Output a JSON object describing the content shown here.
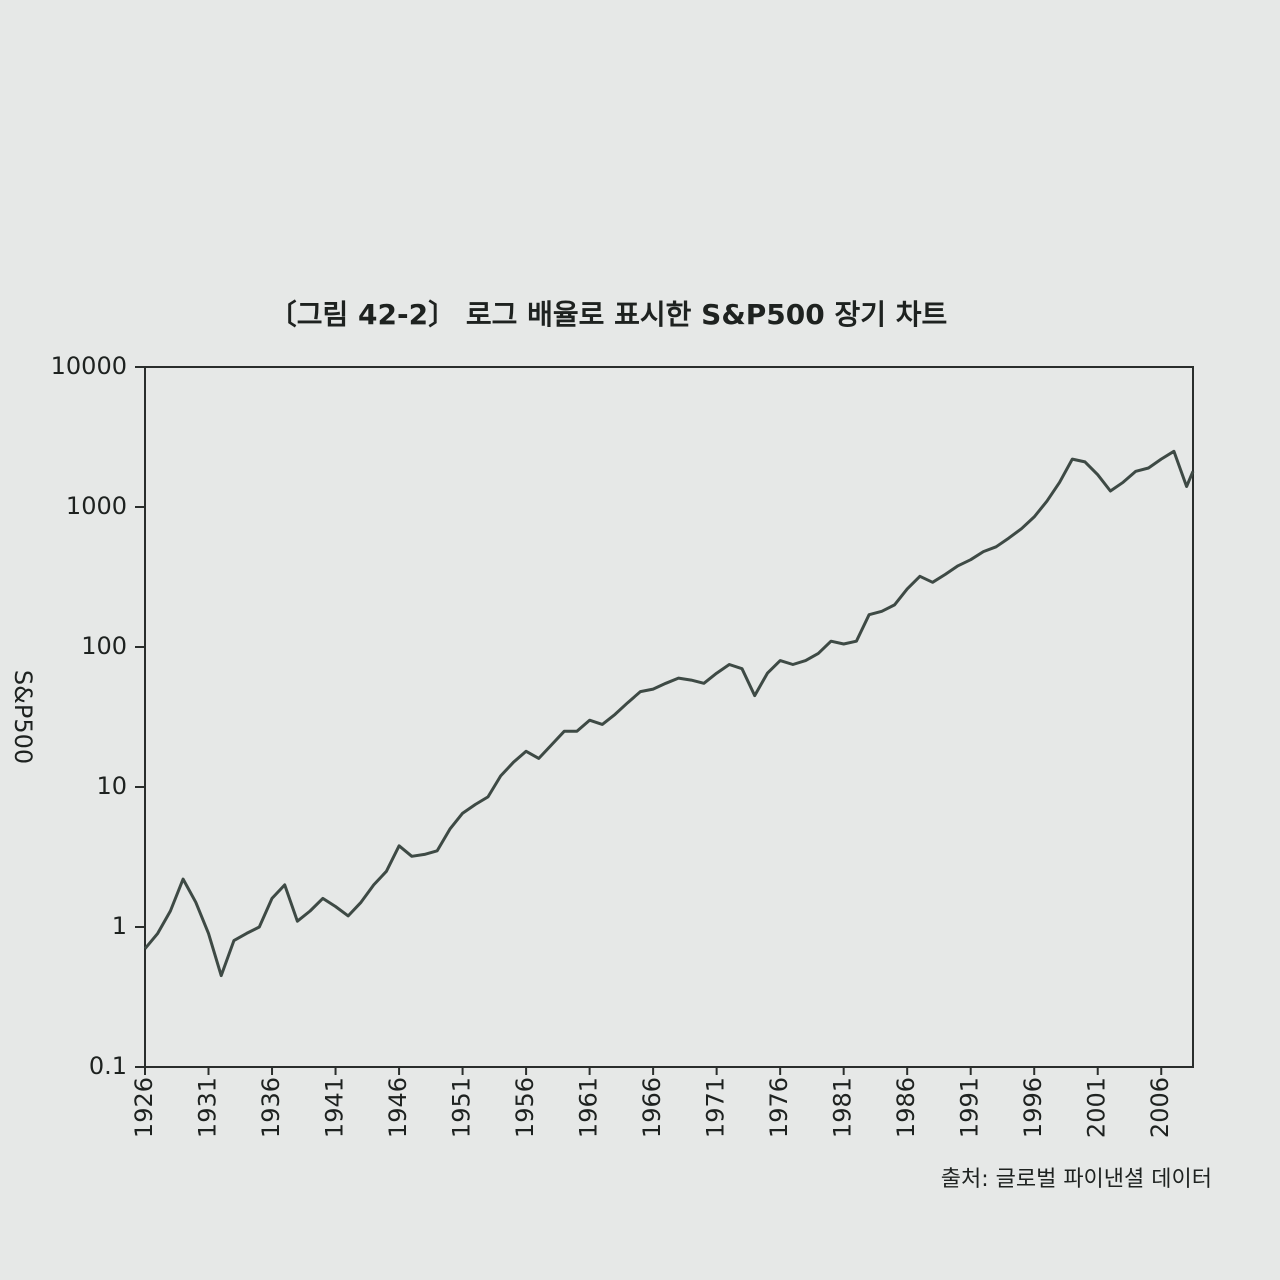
{
  "chart_data": {
    "type": "line",
    "title": "〔그림 42-2〕 로그 배율로 표시한 S&P500 장기 차트",
    "y_label": "S&P500",
    "source": "출처: 글로벌 파이낸셜 데이터",
    "log_scale": true,
    "color": "#3e4a45",
    "x": [
      1926,
      1927,
      1928,
      1929,
      1930,
      1931,
      1932,
      1933,
      1934,
      1935,
      1936,
      1937,
      1938,
      1939,
      1940,
      1941,
      1942,
      1943,
      1944,
      1945,
      1946,
      1947,
      1948,
      1949,
      1950,
      1951,
      1952,
      1953,
      1954,
      1955,
      1956,
      1957,
      1958,
      1959,
      1960,
      1961,
      1962,
      1963,
      1964,
      1965,
      1966,
      1967,
      1968,
      1969,
      1970,
      1971,
      1972,
      1973,
      1974,
      1975,
      1976,
      1977,
      1978,
      1979,
      1980,
      1981,
      1982,
      1983,
      1984,
      1985,
      1986,
      1987,
      1988,
      1989,
      1990,
      1991,
      1992,
      1993,
      1994,
      1995,
      1996,
      1997,
      1998,
      1999,
      2000,
      2001,
      2002,
      2003,
      2004,
      2005,
      2006,
      2007,
      2008,
      2008.5
    ],
    "values": [
      0.7,
      0.9,
      1.3,
      2.2,
      1.5,
      0.9,
      0.45,
      0.8,
      0.9,
      1.0,
      1.6,
      2.0,
      1.1,
      1.3,
      1.6,
      1.4,
      1.2,
      1.5,
      2.0,
      2.5,
      3.8,
      3.2,
      3.3,
      3.5,
      5,
      6.5,
      7.5,
      8.5,
      12,
      15,
      18,
      16,
      20,
      25,
      25,
      30,
      28,
      33,
      40,
      48,
      50,
      55,
      60,
      58,
      55,
      65,
      75,
      70,
      45,
      65,
      80,
      75,
      80,
      90,
      110,
      105,
      110,
      170,
      180,
      200,
      260,
      320,
      290,
      330,
      380,
      420,
      480,
      520,
      600,
      700,
      850,
      1100,
      1500,
      2200,
      2100,
      1700,
      1300,
      1500,
      1800,
      1900,
      2200,
      2500,
      1400,
      1800
    ],
    "xlim": [
      1926,
      2008.5
    ],
    "xticks": [
      1926,
      1931,
      1936,
      1941,
      1946,
      1951,
      1956,
      1961,
      1966,
      1971,
      1976,
      1981,
      1986,
      1991,
      1996,
      2001,
      2006
    ],
    "ylim": [
      0.1,
      10000
    ],
    "yticks": [
      0.1,
      1,
      10,
      100,
      1000,
      10000
    ]
  }
}
